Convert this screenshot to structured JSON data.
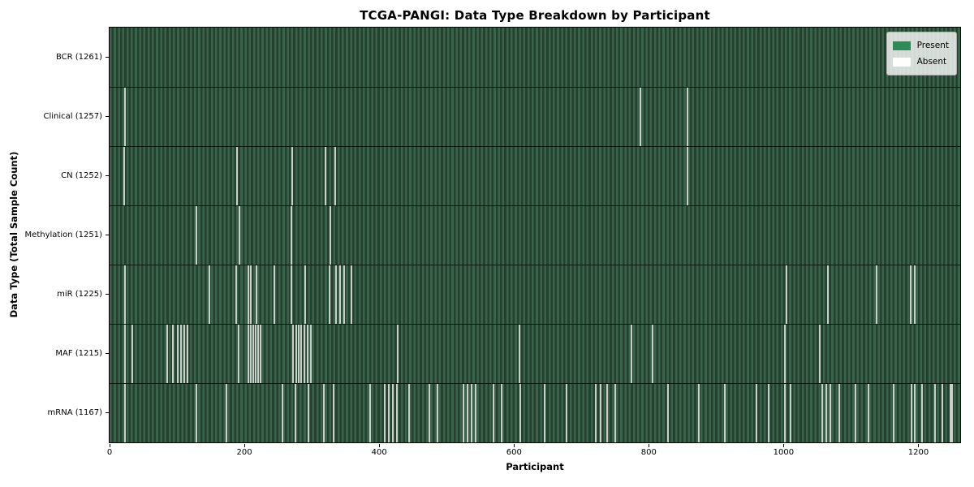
{
  "figure": {
    "background": "#ffffff"
  },
  "chart_data": {
    "type": "heatmap",
    "title": "TCGA-PANGI: Data Type Breakdown by Participant",
    "xlabel": "Participant",
    "ylabel": "Data Type (Total Sample Count)",
    "x_axis": {
      "min": 0,
      "max": 1262,
      "ticks": [
        0,
        200,
        400,
        600,
        800,
        1000,
        1200
      ]
    },
    "legend": {
      "position": "upper-right",
      "entries": [
        {
          "label": "Present",
          "color": "#2e8b57"
        },
        {
          "label": "Absent",
          "color": "#ffffff"
        }
      ]
    },
    "colors": {
      "present_fill": "#2e8b57",
      "bar_stripe_light": "#3b624a",
      "bar_stripe_dark": "#24402f",
      "absent_stripe": "#c9d0c9",
      "row_divider": "#0d1a12",
      "axis": "#000000"
    },
    "rows": [
      {
        "name": "BCR",
        "label": "BCR (1261)",
        "total": 1261,
        "absent_at": []
      },
      {
        "name": "Clinical",
        "label": "Clinical (1257)",
        "total": 1257,
        "absent_at": [
          23,
          788,
          857
        ]
      },
      {
        "name": "CN",
        "label": "CN (1252)",
        "total": 1252,
        "absent_at": [
          22,
          189,
          271,
          320,
          335,
          857
        ]
      },
      {
        "name": "Methylation",
        "label": "Methylation (1251)",
        "total": 1251,
        "absent_at": [
          129,
          193,
          270,
          327
        ]
      },
      {
        "name": "miR",
        "label": "miR (1225)",
        "total": 1225,
        "absent_at": [
          23,
          148,
          188,
          206,
          209,
          218,
          244,
          270,
          290,
          326,
          336,
          342,
          348,
          359,
          1004,
          1066,
          1138,
          1189,
          1195
        ]
      },
      {
        "name": "MAF",
        "label": "MAF (1215)",
        "total": 1215,
        "absent_at": [
          23,
          34,
          85,
          94,
          101,
          106,
          111,
          116,
          191,
          206,
          209,
          213,
          217,
          220,
          224,
          272,
          277,
          280,
          284,
          289,
          294,
          298,
          428,
          608,
          774,
          805,
          1002,
          1054
        ]
      },
      {
        "name": "mRNA",
        "label": "mRNA (1167)",
        "total": 1167,
        "absent_at": [
          23,
          129,
          173,
          256,
          276,
          295,
          318,
          332,
          386,
          408,
          414,
          420,
          426,
          444,
          474,
          486,
          525,
          531,
          537,
          543,
          569,
          582,
          609,
          645,
          678,
          721,
          729,
          738,
          750,
          828,
          874,
          913,
          960,
          978,
          1002,
          1010,
          1057,
          1063,
          1069,
          1082,
          1106,
          1126,
          1163,
          1190,
          1194,
          1205,
          1225,
          1235,
          1247,
          1250
        ]
      }
    ]
  }
}
